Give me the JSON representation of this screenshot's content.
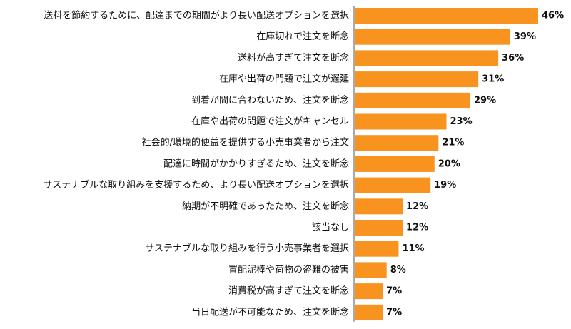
{
  "chart_data": {
    "type": "bar",
    "orientation": "horizontal",
    "categories": [
      "送料を節約するために、配達までの期間がより長い配送オプションを選択",
      "在庫切れで注文を断念",
      "送料が高すぎて注文を断念",
      "在庫や出荷の問題で注文が遅延",
      "到着が間に合わないため、注文を断念",
      "在庫や出荷の問題で注文がキャンセル",
      "社会的/環境的便益を提供する小売事業者から注文",
      "配達に時間がかかりすぎるため、注文を断念",
      "サステナブルな取り組みを支援するため、より長い配送オプションを選択",
      "納期が不明確であったため、注文を断念",
      "該当なし",
      "サステナブルな取り組みを行う小売事業者を選択",
      "置配泥棒や荷物の盗難の被害",
      "消費税が高すぎて注文を断念",
      "当日配送が不可能なため、注文を断念"
    ],
    "values": [
      46,
      39,
      36,
      31,
      29,
      23,
      21,
      20,
      19,
      12,
      12,
      11,
      8,
      7,
      7
    ],
    "value_labels": [
      "46%",
      "39%",
      "36%",
      "31%",
      "29%",
      "23%",
      "21%",
      "20%",
      "19%",
      "12%",
      "12%",
      "11%",
      "8%",
      "7%",
      "7%"
    ],
    "unit": "%",
    "bar_color": "#F7931E",
    "axis_color": "#555555",
    "xlim": [
      0,
      46
    ],
    "grid": false,
    "legend": "none"
  }
}
